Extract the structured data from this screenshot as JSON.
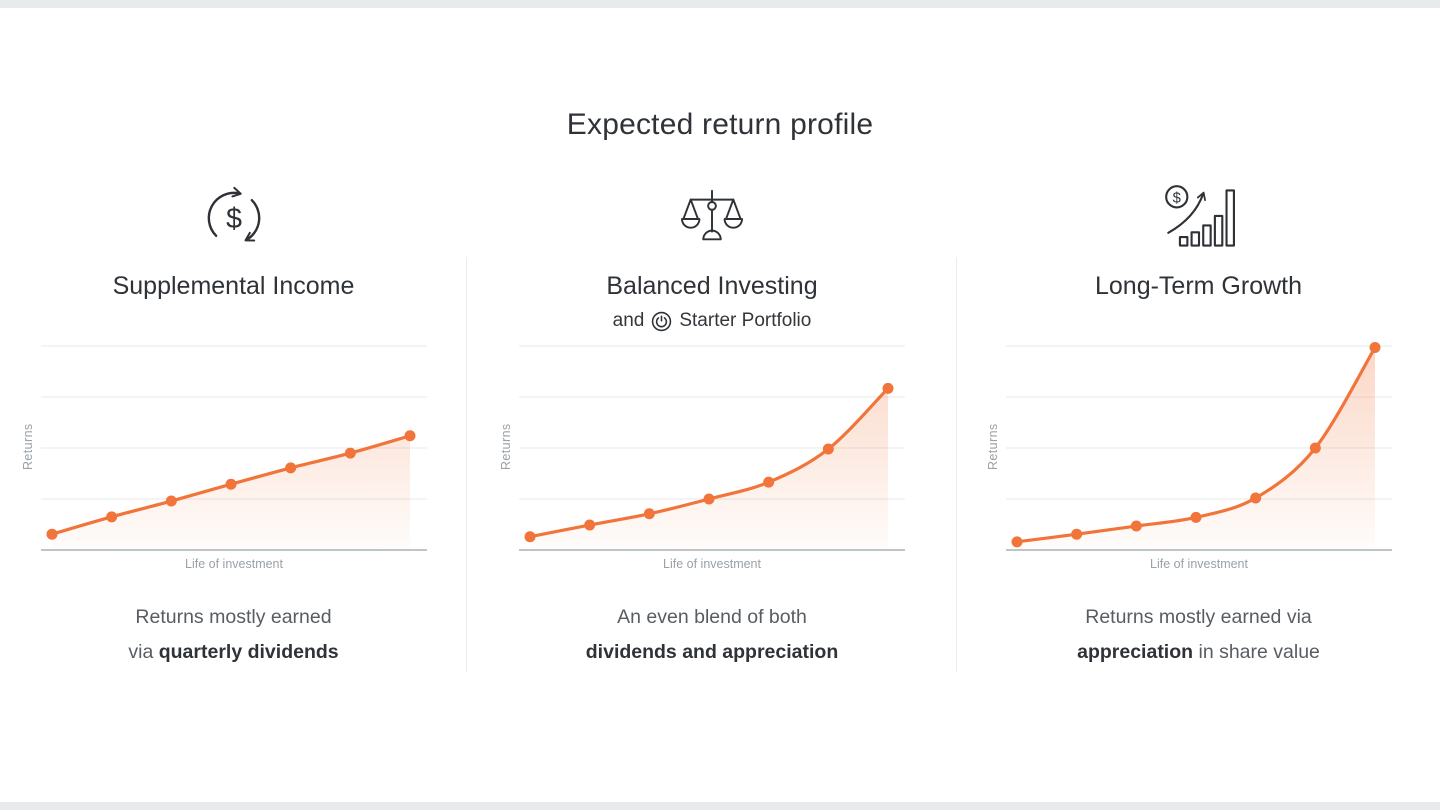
{
  "page": {
    "title": "Expected return profile",
    "background": "#ffffff",
    "edge_strip_color": "#e8ebeb"
  },
  "colors": {
    "accent_orange": "#F1753B",
    "heading_text": "#2F3338",
    "body_text_gray": "#585D63",
    "axis_label_gray": "#9AA1A7",
    "gridline": "#E7E9EA",
    "axis_line": "#A9B0B5",
    "divider": "#ECECEC",
    "icon_stroke": "#2E3236"
  },
  "columns": [
    {
      "id": "supplemental-income",
      "icon": "dollar-cycle-icon",
      "title": "Supplemental Income",
      "caption": {
        "line1": "Returns mostly earned",
        "line2_prefix": "via ",
        "line2_bold": "quarterly dividends",
        "line2_suffix": ""
      }
    },
    {
      "id": "balanced-investing",
      "icon": "balance-scale-icon",
      "title": "Balanced Investing",
      "subtitle": {
        "prefix": "and",
        "icon": "power-button-icon",
        "text": "Starter Portfolio"
      },
      "caption": {
        "line1": "An even blend of both",
        "line2_prefix": "",
        "line2_bold": "dividends and appreciation",
        "line2_suffix": ""
      }
    },
    {
      "id": "long-term-growth",
      "icon": "money-growth-bars-icon",
      "title": "Long-Term Growth",
      "caption": {
        "line1": "Returns mostly earned via",
        "line2_prefix": "",
        "line2_bold": "appreciation",
        "line2_suffix": " in share value"
      }
    }
  ],
  "chart_data": [
    {
      "type": "area",
      "title": "Supplemental Income return curve",
      "xlabel": "Life of investment",
      "ylabel": "Returns",
      "x": [
        0,
        1,
        2,
        3,
        4,
        5,
        6
      ],
      "values": [
        0.31,
        0.65,
        0.96,
        1.29,
        1.61,
        1.9,
        2.24
      ],
      "ylim": [
        0,
        4.2
      ],
      "gridlines": [
        1,
        2,
        3,
        4
      ],
      "grid": true,
      "legend": false,
      "line_color": "#F1753B",
      "fill": "orange-gradient",
      "marker": "circle",
      "shape": "linear growth"
    },
    {
      "type": "area",
      "title": "Balanced Investing return curve",
      "xlabel": "Life of investment",
      "ylabel": "Returns",
      "x": [
        0,
        1,
        2,
        3,
        4,
        5,
        6
      ],
      "values": [
        0.26,
        0.49,
        0.71,
        1.0,
        1.33,
        1.98,
        3.17
      ],
      "ylim": [
        0,
        4.2
      ],
      "gridlines": [
        1,
        2,
        3,
        4
      ],
      "grid": true,
      "legend": false,
      "line_color": "#F1753B",
      "fill": "orange-gradient",
      "marker": "circle",
      "shape": "moderate exponential growth"
    },
    {
      "type": "area",
      "title": "Long-Term Growth return curve",
      "xlabel": "Life of investment",
      "ylabel": "Returns",
      "x": [
        0,
        1,
        2,
        3,
        4,
        5,
        6
      ],
      "values": [
        0.16,
        0.31,
        0.47,
        0.64,
        1.02,
        2.0,
        3.97
      ],
      "ylim": [
        0,
        4.2
      ],
      "gridlines": [
        1,
        2,
        3,
        4
      ],
      "grid": true,
      "legend": false,
      "line_color": "#F1753B",
      "fill": "orange-gradient",
      "marker": "circle",
      "shape": "steep exponential growth"
    }
  ]
}
